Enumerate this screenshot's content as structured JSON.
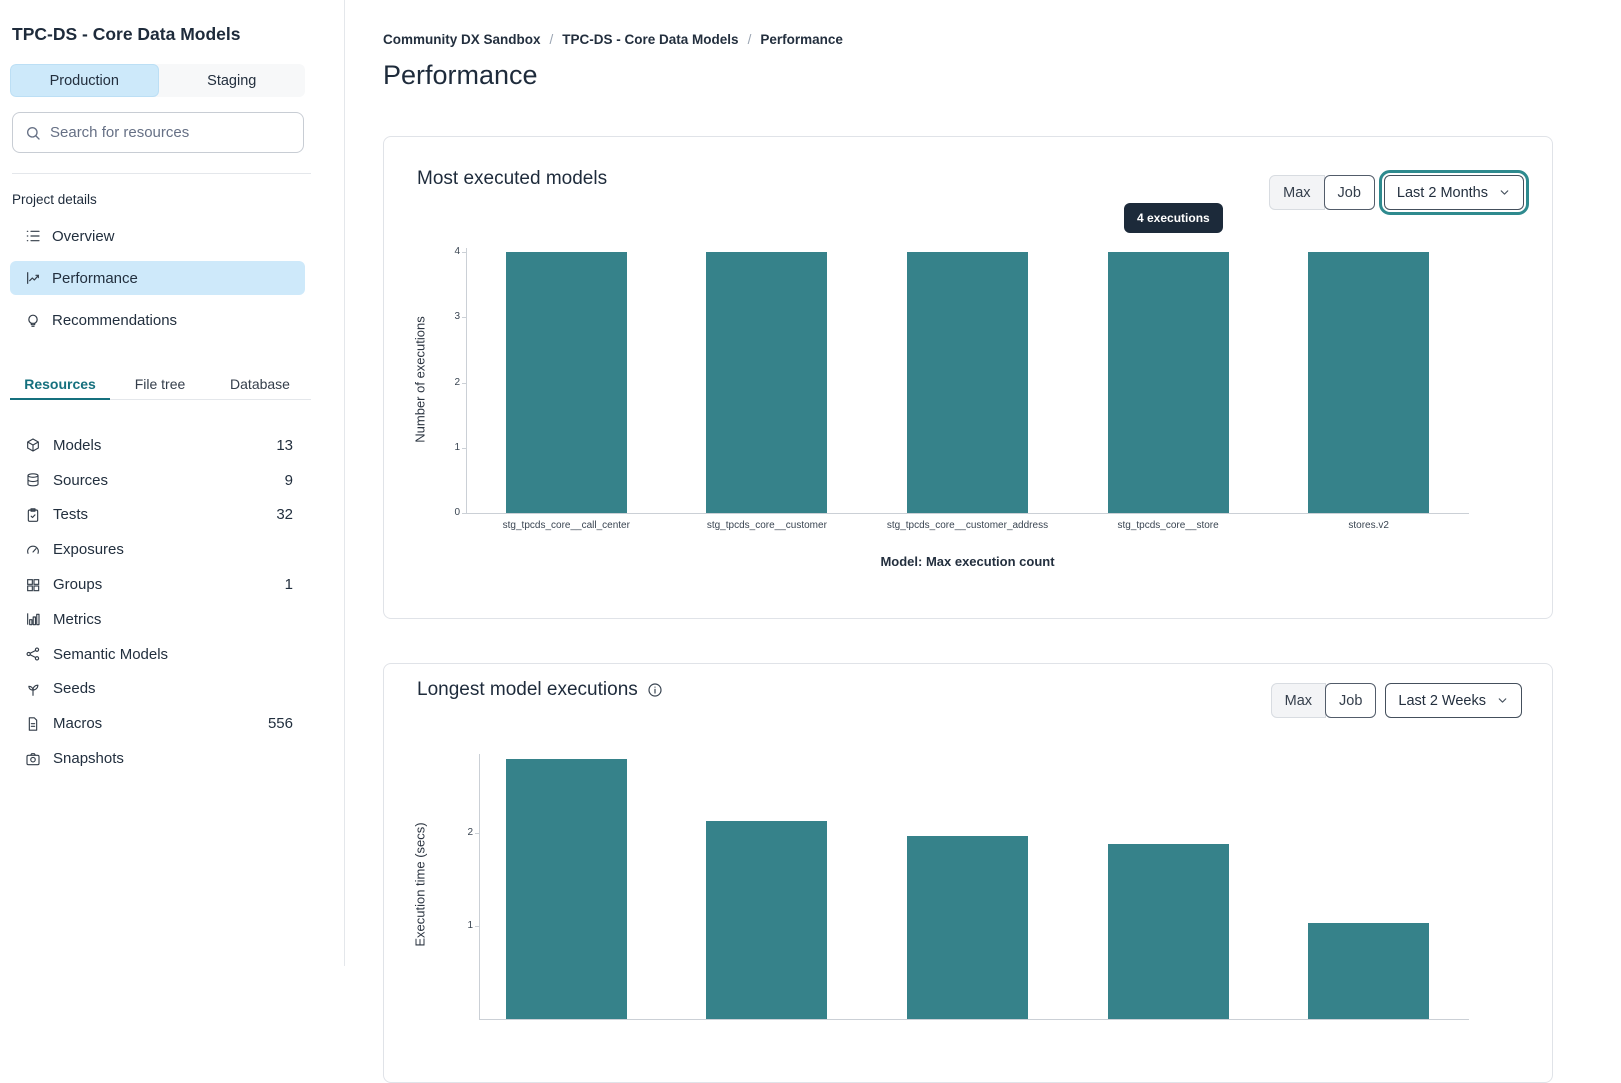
{
  "sidebar": {
    "project_title": "TPC-DS - Core Data Models",
    "environment_tabs": [
      {
        "label": "Production"
      },
      {
        "label": "Staging"
      }
    ],
    "search": {
      "placeholder": "Search for resources"
    },
    "project_details": {
      "heading": "Project details",
      "items": [
        {
          "label": "Overview",
          "icon": "list-icon"
        },
        {
          "label": "Performance",
          "icon": "chart-line-icon"
        },
        {
          "label": "Recommendations",
          "icon": "lightbulb-icon"
        }
      ]
    },
    "resource_tabs": [
      {
        "label": "Resources"
      },
      {
        "label": "File tree"
      },
      {
        "label": "Database"
      }
    ],
    "resources": [
      {
        "label": "Models",
        "count": "13",
        "icon": "cube-icon"
      },
      {
        "label": "Sources",
        "count": "9",
        "icon": "database-icon"
      },
      {
        "label": "Tests",
        "count": "32",
        "icon": "clipboard-check-icon"
      },
      {
        "label": "Exposures",
        "count": "",
        "icon": "gauge-icon"
      },
      {
        "label": "Groups",
        "count": "1",
        "icon": "grid-icon"
      },
      {
        "label": "Metrics",
        "count": "",
        "icon": "bar-chart-icon"
      },
      {
        "label": "Semantic Models",
        "count": "",
        "icon": "nodes-icon"
      },
      {
        "label": "Seeds",
        "count": "",
        "icon": "sprout-icon"
      },
      {
        "label": "Macros",
        "count": "556",
        "icon": "document-icon"
      },
      {
        "label": "Snapshots",
        "count": "",
        "icon": "camera-icon"
      }
    ]
  },
  "breadcrumb": {
    "items": [
      "Community DX Sandbox",
      "TPC-DS - Core Data Models",
      "Performance"
    ],
    "separator": "/"
  },
  "page_title": "Performance",
  "cards": [
    {
      "title": "Most executed models",
      "toggle": [
        "Max",
        "Job"
      ],
      "range_selector": "Last 2 Months",
      "tooltip": "4 executions"
    },
    {
      "title": "Longest model executions",
      "toggle": [
        "Max",
        "Job"
      ],
      "range_selector": "Last 2 Weeks"
    }
  ],
  "chart_data": [
    {
      "type": "bar",
      "title": "Most executed models",
      "categories": [
        "stg_tpcds_core__call_center",
        "stg_tpcds_core__customer",
        "stg_tpcds_core__customer_address",
        "stg_tpcds_core__store",
        "stores.v2"
      ],
      "values": [
        4,
        4,
        4,
        4,
        4
      ],
      "xlabel": "Model: Max execution count",
      "ylabel": "Number of executions",
      "ylim": [
        0,
        4
      ],
      "yticks": [
        0,
        1,
        2,
        3,
        4
      ],
      "bar_color": "#36828A",
      "legend": "none",
      "grid": false,
      "annotation": {
        "text": "4 executions",
        "target_category_index": 3
      }
    },
    {
      "type": "bar",
      "title": "Longest model executions",
      "categories": [
        "",
        "",
        "",
        "",
        ""
      ],
      "values": [
        2.8,
        2.13,
        1.97,
        1.88,
        1.03
      ],
      "ylabel": "Execution time (secs)",
      "ylim": [
        0,
        3
      ],
      "yticks": [
        1,
        2
      ],
      "bar_color": "#36828A",
      "legend": "none",
      "grid": false
    }
  ],
  "colors": {
    "bar_teal": "#36828A",
    "accent_teal": "#15707E",
    "focus_ring_teal": "#2E8A8E",
    "selected_blue": "#CDE9FA",
    "tooltip_bg": "#1C2A3A",
    "text_dark": "#1E2B3B"
  }
}
